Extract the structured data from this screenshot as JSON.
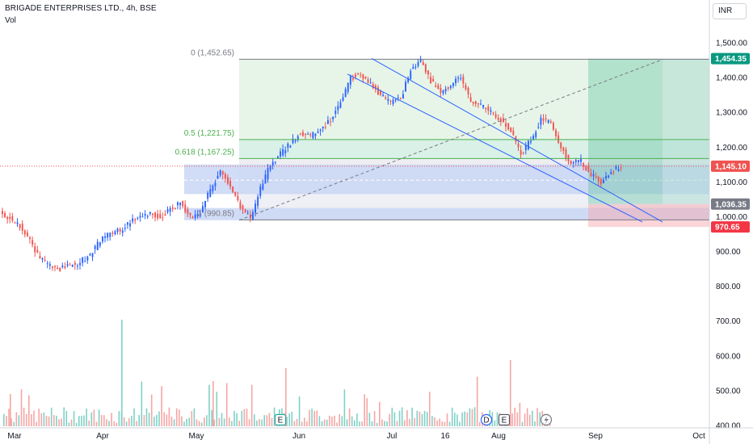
{
  "header": {
    "title": "BRIGADE ENTERPRISES LTD., 4h, BSE",
    "volume_label": "Vol"
  },
  "currency": "INR",
  "colors": {
    "up": "#26a69a",
    "down": "#ef5350",
    "candle_up": "#2962ff",
    "candle_down": "#ef5350",
    "channel": "#2962ff",
    "last_price": "#ef5350"
  },
  "chart_data": {
    "type": "candlestick",
    "title": "BRIGADE ENTERPRISES LTD., 4h, BSE",
    "y_axis": {
      "ticks": [
        1500,
        1400,
        1300,
        1200,
        1100,
        1000,
        900,
        800,
        700,
        600,
        500,
        400
      ],
      "tick_labels": [
        "1,500.00",
        "1,400.00",
        "1,300.00",
        "1,200.00",
        "1,100.00",
        "1,000.00",
        "900.00",
        "800.00",
        "700.00",
        "600.00",
        "500.00",
        "400.00"
      ],
      "position": "right"
    },
    "x_axis": {
      "labels": [
        "Mar",
        "Apr",
        "May",
        "Jun",
        "Jul",
        "16",
        "Aug",
        "Sep",
        "Oct"
      ]
    },
    "price_path": [
      [
        "Mar",
        1010
      ],
      [
        "Mar",
        995
      ],
      [
        "Mar",
        975
      ],
      [
        "Mar",
        930
      ],
      [
        "Mar",
        880
      ],
      [
        "Mar",
        860
      ],
      [
        "Mar",
        850
      ],
      [
        "Mar",
        860
      ],
      [
        "Mar",
        870
      ],
      [
        "Apr",
        890
      ],
      [
        "Apr",
        930
      ],
      [
        "Apr",
        955
      ],
      [
        "Apr",
        960
      ],
      [
        "Apr",
        985
      ],
      [
        "Apr",
        1000
      ],
      [
        "Apr",
        1010
      ],
      [
        "Apr",
        1000
      ],
      [
        "Apr",
        1020
      ],
      [
        "Apr",
        1040
      ],
      [
        "Apr",
        1000
      ],
      [
        "Apr",
        1010
      ],
      [
        "May",
        1080
      ],
      [
        "May",
        1130
      ],
      [
        "May",
        1090
      ],
      [
        "May",
        1030
      ],
      [
        "May",
        995
      ],
      [
        "May",
        1080
      ],
      [
        "May",
        1150
      ],
      [
        "May",
        1180
      ],
      [
        "May",
        1210
      ],
      [
        "May",
        1240
      ],
      [
        "May",
        1230
      ],
      [
        "Jun",
        1250
      ],
      [
        "Jun",
        1280
      ],
      [
        "Jun",
        1330
      ],
      [
        "Jun",
        1400
      ],
      [
        "Jun",
        1410
      ],
      [
        "Jun",
        1380
      ],
      [
        "Jun",
        1350
      ],
      [
        "Jun",
        1330
      ],
      [
        "Jun",
        1340
      ],
      [
        "Jun",
        1420
      ],
      [
        "Jun",
        1450
      ],
      [
        "Jul",
        1390
      ],
      [
        "Jul",
        1360
      ],
      [
        "Jul",
        1380
      ],
      [
        "Jul",
        1400
      ],
      [
        "Jul",
        1330
      ],
      [
        "Jul",
        1320
      ],
      [
        "16",
        1300
      ],
      [
        "16",
        1280
      ],
      [
        "16",
        1250
      ],
      [
        "16",
        1180
      ],
      [
        "16",
        1220
      ],
      [
        "16",
        1280
      ],
      [
        "Aug",
        1270
      ],
      [
        "Aug",
        1200
      ],
      [
        "Aug",
        1150
      ],
      [
        "Aug",
        1160
      ],
      [
        "Aug",
        1120
      ],
      [
        "Aug",
        1100
      ],
      [
        "Aug",
        1130
      ],
      [
        "Aug",
        1145.1
      ]
    ],
    "last_price": 1145.1,
    "fibonacci": [
      {
        "ratio_label": "0 (1,452.65)",
        "price": 1452.65,
        "color": "#787b86"
      },
      {
        "ratio_label": "0.5 (1,221.75)",
        "price": 1221.75,
        "color": "#4caf50"
      },
      {
        "ratio_label": "0.618 (1,167.25)",
        "price": 1167.25,
        "color": "#4caf50"
      },
      {
        "ratio_label": "1 (990.85)",
        "price": 990.85,
        "color": "#787b86"
      }
    ],
    "long_position": {
      "target": 1454.35,
      "entry": 1036.35,
      "stop": 970.65
    },
    "price_tags": [
      {
        "label": "1,454.35",
        "price": 1454.35,
        "color": "#089981"
      },
      {
        "label": "1,145.10",
        "price": 1145.1,
        "color": "#ef5350"
      },
      {
        "label": "1,036.35",
        "price": 1036.35,
        "color": "#787b86"
      },
      {
        "label": "970.65",
        "price": 970.65,
        "color": "#f23645"
      }
    ],
    "event_markers": [
      {
        "label": "E",
        "x_label": "Jun"
      },
      {
        "label": "D",
        "x_label": "Aug"
      },
      {
        "label": "E",
        "x_label": "Aug"
      }
    ]
  }
}
